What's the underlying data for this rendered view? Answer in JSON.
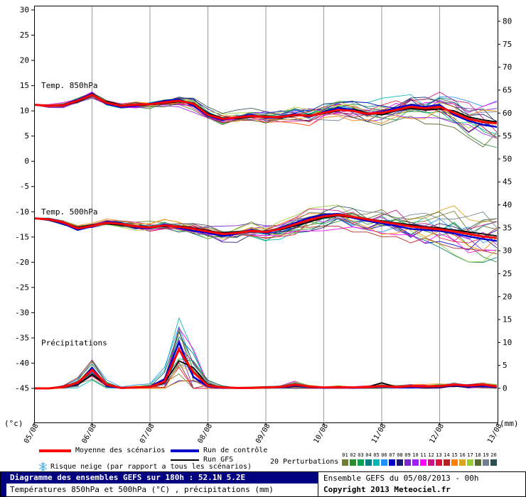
{
  "chart_data": {
    "type": "line",
    "title": "Diagramme des ensembles GEFS sur 180h : 52.1N 5.2E",
    "subtitle": "Températures 850hPa et 500hPa (°C) , précipitations (mm)",
    "x_labels": [
      "05/08",
      "06/08",
      "07/08",
      "08/08",
      "09/08",
      "10/08",
      "11/08",
      "12/08",
      "13/08"
    ],
    "x_step_hours": 6,
    "left_axis": {
      "max": 30,
      "min": -45,
      "step": 5,
      "unit": "(°c)"
    },
    "right_axis": {
      "max": 80,
      "min": 0,
      "step": 5,
      "unit": "(mm)"
    },
    "series_styles": {
      "mean": "#ff0000",
      "control": "#0000cc",
      "gfs": "#000000"
    },
    "perturbation_colors": [
      "#6e7f2f",
      "#2e8b2e",
      "#00a651",
      "#008080",
      "#00b7b7",
      "#1e90ff",
      "#0000cd",
      "#191970",
      "#7d26cd",
      "#a020f0",
      "#ff00ff",
      "#c71585",
      "#dc143c",
      "#b22222",
      "#ff7f00",
      "#daa520",
      "#9acd32",
      "#556b2f",
      "#708090",
      "#2f4f4f"
    ],
    "panels": [
      {
        "name": "temp850",
        "label": "Temp. 850hPa",
        "label_anchor_value": 14.5,
        "mean": [
          11.2,
          11.0,
          11.1,
          12.0,
          13.2,
          11.6,
          11.0,
          11.2,
          11.3,
          11.7,
          12.0,
          11.4,
          9.2,
          8.4,
          8.7,
          9.0,
          8.8,
          8.8,
          9.2,
          9.0,
          9.6,
          10.2,
          10.0,
          9.4,
          9.6,
          10.2,
          10.8,
          10.5,
          10.8,
          9.6,
          8.4,
          7.8,
          7.5
        ],
        "control": [
          11.2,
          11.0,
          11.2,
          12.2,
          13.4,
          11.4,
          10.8,
          11.0,
          11.4,
          12.0,
          12.3,
          11.0,
          9.0,
          8.2,
          8.8,
          9.2,
          8.6,
          8.9,
          9.4,
          8.8,
          9.8,
          10.6,
          10.2,
          9.2,
          9.8,
          10.6,
          11.2,
          10.8,
          11.2,
          9.2,
          8.0,
          7.2,
          6.8
        ],
        "gfs": [
          11.2,
          11.1,
          11.0,
          11.8,
          13.0,
          11.8,
          11.2,
          11.0,
          11.2,
          11.5,
          11.8,
          11.6,
          9.5,
          8.6,
          8.5,
          8.8,
          9.0,
          8.6,
          9.0,
          9.2,
          9.4,
          10.0,
          10.4,
          9.6,
          9.2,
          10.0,
          10.5,
          10.2,
          10.4,
          10.0,
          8.8,
          8.2,
          7.8
        ],
        "spread": [
          0,
          0.3,
          0.4,
          0.5,
          0.6,
          0.5,
          0.5,
          0.6,
          0.7,
          0.8,
          0.9,
          1.0,
          1.2,
          1.2,
          1.1,
          1.1,
          1.2,
          1.2,
          1.3,
          1.4,
          1.5,
          1.6,
          1.6,
          1.7,
          1.8,
          1.9,
          2.0,
          2.2,
          2.4,
          2.6,
          2.8,
          3.0,
          3.2
        ]
      },
      {
        "name": "temp500",
        "label": "Temp. 500hPa",
        "label_anchor_value": -10.5,
        "mean": [
          -11.3,
          -11.5,
          -12.1,
          -13.3,
          -12.8,
          -12.2,
          -12.4,
          -12.9,
          -13.1,
          -12.7,
          -13.0,
          -13.4,
          -13.9,
          -14.4,
          -14.2,
          -13.8,
          -14.0,
          -13.4,
          -12.5,
          -11.6,
          -10.9,
          -10.6,
          -11.0,
          -11.5,
          -12.0,
          -12.4,
          -12.9,
          -13.2,
          -13.5,
          -13.9,
          -14.4,
          -14.9,
          -15.2
        ],
        "control": [
          -11.3,
          -11.6,
          -12.3,
          -13.6,
          -12.9,
          -12.0,
          -12.2,
          -13.1,
          -13.3,
          -12.5,
          -13.2,
          -13.8,
          -14.2,
          -14.8,
          -14.4,
          -13.6,
          -14.2,
          -13.2,
          -12.2,
          -11.2,
          -10.6,
          -10.4,
          -11.2,
          -11.8,
          -12.3,
          -12.8,
          -13.4,
          -13.6,
          -13.8,
          -14.3,
          -14.9,
          -15.4,
          -15.8
        ],
        "gfs": [
          -11.3,
          -11.4,
          -12.0,
          -13.1,
          -12.6,
          -12.4,
          -12.6,
          -12.8,
          -13.0,
          -12.9,
          -12.8,
          -13.2,
          -13.7,
          -14.2,
          -14.0,
          -14.0,
          -13.8,
          -13.6,
          -12.8,
          -12.0,
          -11.2,
          -10.8,
          -11.2,
          -11.4,
          -11.8,
          -12.2,
          -12.6,
          -13.0,
          -13.2,
          -13.6,
          -14.0,
          -14.4,
          -14.8
        ],
        "spread": [
          0,
          0.3,
          0.4,
          0.5,
          0.5,
          0.5,
          0.6,
          0.7,
          0.8,
          0.9,
          1.0,
          1.2,
          1.4,
          1.6,
          1.7,
          1.6,
          1.5,
          1.6,
          1.7,
          1.8,
          1.8,
          1.9,
          2.0,
          2.1,
          2.2,
          2.4,
          2.6,
          2.8,
          3.0,
          3.2,
          3.4,
          3.6,
          3.8
        ]
      },
      {
        "name": "precip",
        "label": "Précipitations",
        "label_anchor_value": -36.5,
        "mean": [
          0,
          0,
          0.3,
          1.2,
          4.0,
          0.8,
          0.1,
          0.2,
          0.3,
          1.5,
          8.5,
          3.5,
          0.6,
          0.2,
          0.1,
          0.1,
          0.2,
          0.3,
          0.8,
          0.4,
          0.2,
          0.3,
          0.2,
          0.3,
          0.5,
          0.3,
          0.5,
          0.4,
          0.5,
          0.8,
          0.6,
          0.8,
          0.4
        ],
        "control": [
          0,
          0,
          0.4,
          1.0,
          4.5,
          0.5,
          0.1,
          0.2,
          0.4,
          2.0,
          10.0,
          2.5,
          0.4,
          0.1,
          0.1,
          0.1,
          0.2,
          0.2,
          0.6,
          0.3,
          0.1,
          0.2,
          0.1,
          0.2,
          0.4,
          0.2,
          0.3,
          0.3,
          0.4,
          0.6,
          0.4,
          0.5,
          0.3
        ],
        "gfs": [
          0,
          0,
          0.2,
          0.8,
          3.0,
          0.8,
          0.1,
          0.1,
          0.3,
          1.2,
          6.0,
          4.5,
          0.8,
          0.2,
          0.1,
          0.1,
          0.1,
          0.2,
          0.5,
          0.3,
          0.1,
          0.2,
          0.1,
          0.3,
          1.2,
          0.3,
          0.4,
          0.2,
          0.3,
          0.5,
          0.3,
          0.6,
          0.2
        ],
        "spread": [
          0,
          0.05,
          0.3,
          1.0,
          2.2,
          0.8,
          0.15,
          0.3,
          0.6,
          3.0,
          9.0,
          6.0,
          1.2,
          0.3,
          0.2,
          0.2,
          0.2,
          0.3,
          0.8,
          0.4,
          0.2,
          0.3,
          0.2,
          0.3,
          0.5,
          0.3,
          0.4,
          0.4,
          0.5,
          0.7,
          0.6,
          0.7,
          0.4
        ]
      }
    ]
  },
  "legend": {
    "mean_label": "Moyenne des scénarios",
    "control_label": "Run de contrôle",
    "gfs_label": "Run GFS",
    "perturbations_label": "20 Perturbations",
    "snow_label": "Risque neige (par rapport a tous les scénarios)",
    "perturbation_numbers": [
      "01",
      "02",
      "03",
      "04",
      "05",
      "06",
      "07",
      "08",
      "09",
      "10",
      "11",
      "12",
      "13",
      "14",
      "15",
      "16",
      "17",
      "18",
      "19",
      "20"
    ]
  },
  "footer": {
    "title": "Diagramme des ensembles GEFS sur 180h : 52.1N 5.2E",
    "subtitle": "Températures 850hPa et 500hPa (°C) , précipitations (mm)",
    "run_info": "Ensemble GEFS du 05/08/2013 - 00h",
    "copyright": "Copyright 2013 Meteociel.fr"
  }
}
